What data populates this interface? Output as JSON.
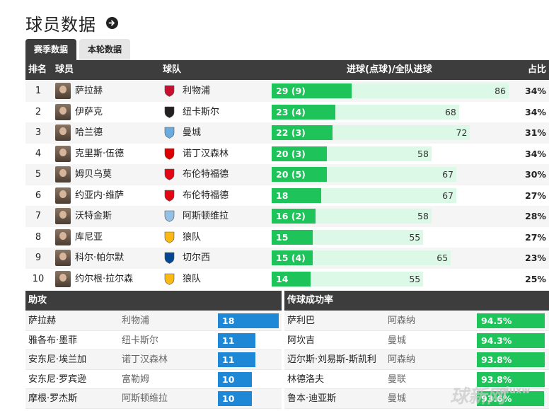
{
  "page": {
    "title": "球员数据"
  },
  "tabs": [
    {
      "label": "赛季数据",
      "active": true
    },
    {
      "label": "本轮数据",
      "active": false
    }
  ],
  "scorers": {
    "headers": {
      "rank": "排名",
      "player": "球员",
      "team": "球队",
      "goals": "进球(点球)/全队进球",
      "pct": "占比"
    },
    "max_team_goals": 86,
    "rows": [
      {
        "rank": "1",
        "player": "萨拉赫",
        "team": "利物浦",
        "crest": "liverpool-crest-icon",
        "crest_color": "#c8102e",
        "goals_label": "29 (9)",
        "goals": 29,
        "team_goals": "86",
        "team_goals_n": 86,
        "pct": "34%"
      },
      {
        "rank": "2",
        "player": "伊萨克",
        "team": "纽卡斯尔",
        "crest": "newcastle-crest-icon",
        "crest_color": "#241f20",
        "goals_label": "23 (4)",
        "goals": 23,
        "team_goals": "68",
        "team_goals_n": 68,
        "pct": "34%"
      },
      {
        "rank": "3",
        "player": "哈兰德",
        "team": "曼城",
        "crest": "man-city-crest-icon",
        "crest_color": "#6cabdd",
        "goals_label": "22 (3)",
        "goals": 22,
        "team_goals": "72",
        "team_goals_n": 72,
        "pct": "31%"
      },
      {
        "rank": "4",
        "player": "克里斯·伍德",
        "team": "诺丁汉森林",
        "crest": "nottingham-forest-crest-icon",
        "crest_color": "#dd0000",
        "goals_label": "20 (3)",
        "goals": 20,
        "team_goals": "58",
        "team_goals_n": 58,
        "pct": "34%"
      },
      {
        "rank": "5",
        "player": "姆贝乌莫",
        "team": "布伦特福德",
        "crest": "brentford-crest-icon",
        "crest_color": "#e30613",
        "goals_label": "20 (5)",
        "goals": 20,
        "team_goals": "67",
        "team_goals_n": 67,
        "pct": "30%"
      },
      {
        "rank": "6",
        "player": "约亚内·维萨",
        "team": "布伦特福德",
        "crest": "brentford-crest-icon",
        "crest_color": "#e30613",
        "goals_label": "18",
        "goals": 18,
        "team_goals": "67",
        "team_goals_n": 67,
        "pct": "27%"
      },
      {
        "rank": "7",
        "player": "沃特金斯",
        "team": "阿斯顿维拉",
        "crest": "aston-villa-crest-icon",
        "crest_color": "#95bfe5",
        "goals_label": "16 (2)",
        "goals": 16,
        "team_goals": "58",
        "team_goals_n": 58,
        "pct": "28%"
      },
      {
        "rank": "8",
        "player": "库尼亚",
        "team": "狼队",
        "crest": "wolves-crest-icon",
        "crest_color": "#fdb913",
        "goals_label": "15",
        "goals": 15,
        "team_goals": "55",
        "team_goals_n": 55,
        "pct": "27%"
      },
      {
        "rank": "9",
        "player": "科尔·帕尔默",
        "team": "切尔西",
        "crest": "chelsea-crest-icon",
        "crest_color": "#034694",
        "goals_label": "15 (4)",
        "goals": 15,
        "team_goals": "65",
        "team_goals_n": 65,
        "pct": "23%"
      },
      {
        "rank": "10",
        "player": "约尔根·拉尔森",
        "team": "狼队",
        "crest": "wolves-crest-icon",
        "crest_color": "#fdb913",
        "goals_label": "14",
        "goals": 14,
        "team_goals": "55",
        "team_goals_n": 55,
        "pct": "25%"
      }
    ]
  },
  "assists": {
    "header": "助攻",
    "bar_color": "#1e88d6",
    "max_value": 18,
    "rows": [
      {
        "player": "萨拉赫",
        "team": "利物浦",
        "value": "18",
        "n": 18
      },
      {
        "player": "雅各布·墨菲",
        "team": "纽卡斯尔",
        "value": "11",
        "n": 11
      },
      {
        "player": "安东尼·埃兰加",
        "team": "诺丁汉森林",
        "value": "11",
        "n": 11
      },
      {
        "player": "安东尼·罗宾逊",
        "team": "富勒姆",
        "value": "10",
        "n": 10
      },
      {
        "player": "摩根·罗杰斯",
        "team": "阿斯顿维拉",
        "value": "10",
        "n": 10
      }
    ]
  },
  "passing": {
    "header": "传球成功率",
    "bar_color": "#1ec45a",
    "rows": [
      {
        "player": "萨利巴",
        "team": "阿森纳",
        "value": "94.5%",
        "n": 94.5
      },
      {
        "player": "阿坎吉",
        "team": "曼城",
        "value": "94.3%",
        "n": 94.3
      },
      {
        "player": "迈尔斯·刘易斯-斯凯利",
        "team": "阿森纳",
        "value": "93.8%",
        "n": 93.8
      },
      {
        "player": "林德洛夫",
        "team": "曼联",
        "value": "93.8%",
        "n": 93.8
      },
      {
        "player": "鲁本·迪亚斯",
        "team": "曼城",
        "value": "93.6%",
        "n": 93.6
      }
    ]
  },
  "watermark": {
    "main": "球新网",
    "sub": "qiuxw"
  }
}
